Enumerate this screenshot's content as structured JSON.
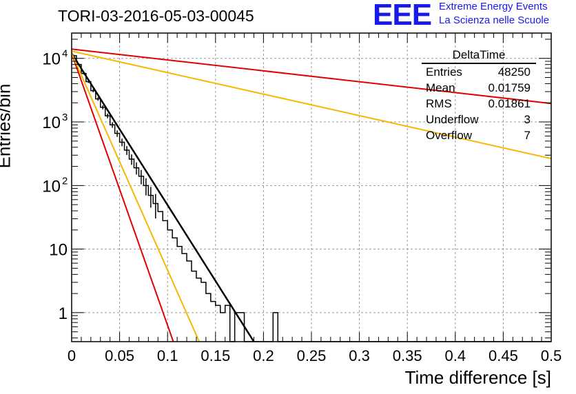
{
  "header": {
    "title": "TORI-03-2016-05-03-00045",
    "logo_text": "EEE",
    "logo_line1": "Extreme Energy Events",
    "logo_line2": "La Scienza nelle Scuole"
  },
  "stats_box": {
    "name": "DeltaTime",
    "rows": [
      {
        "label": "Entries",
        "value": "48250"
      },
      {
        "label": "Mean",
        "value": "0.01759"
      },
      {
        "label": "RMS",
        "value": "0.01861"
      },
      {
        "label": "Underflow",
        "value": "3"
      },
      {
        "label": "Overflow",
        "value": "7"
      }
    ]
  },
  "colors": {
    "histogram": "#000000",
    "fit_black": "#000000",
    "fit_red": "#e00000",
    "fit_orange": "#f5b800",
    "grid": "#999999"
  },
  "chart_data": {
    "type": "line",
    "xlabel": "Time difference [s]",
    "ylabel": "Entries/bin",
    "xlim": [
      0,
      0.5
    ],
    "ylim": [
      0.35,
      25000
    ],
    "yscale": "log",
    "grid": true,
    "x_ticks": [
      "0",
      "0.05",
      "0.1",
      "0.15",
      "0.2",
      "0.25",
      "0.3",
      "0.35",
      "0.4",
      "0.45",
      "0.5"
    ],
    "y_ticks": [
      {
        "value": 1,
        "label": "1"
      },
      {
        "value": 10,
        "label": "10"
      },
      {
        "value": 100,
        "label": "10",
        "sup": "2"
      },
      {
        "value": 1000,
        "label": "10",
        "sup": "3"
      },
      {
        "value": 10000,
        "label": "10",
        "sup": "4"
      }
    ],
    "histogram": {
      "bin_width": 0.005,
      "values": [
        11000,
        8000,
        5800,
        4300,
        3100,
        2300,
        1700,
        1250,
        900,
        660,
        480,
        360,
        260,
        190,
        140,
        100,
        70,
        52,
        39,
        28,
        20,
        15,
        11,
        8.5,
        6.5,
        4.5,
        3.5,
        3,
        2,
        1.5,
        1.3,
        1,
        1.3,
        0.3,
        1,
        1,
        0.3,
        0.3,
        0.3,
        0.3,
        0.3,
        0.3,
        1,
        0.3,
        0.3,
        0.3,
        0.3,
        0.3,
        0.3,
        0.3,
        0.3,
        0.3,
        0.3,
        0.3,
        0.3,
        0.3,
        0.3,
        0.3,
        0.3,
        0.3,
        0.3,
        0.3,
        0.3,
        0.3,
        0.3,
        0.3,
        0.3,
        0.3,
        0.3,
        0.3,
        0.3,
        0.3,
        0.3,
        0.3,
        0.3,
        0.3,
        0.3,
        0.3,
        0.3,
        0.3,
        0.3,
        0.3,
        0.3,
        0.3,
        0.3,
        0.3,
        0.3,
        0.3,
        0.3,
        0.3,
        0.3,
        0.3,
        0.3,
        0.3,
        0.3,
        0.3,
        0.3,
        0.3,
        0.3,
        0.3
      ]
    },
    "series": [
      {
        "color": "#000000",
        "x": [
          0,
          0.19
        ],
        "y": [
          12000,
          0.3
        ]
      },
      {
        "color": "#e00000",
        "x": [
          0,
          0.106
        ],
        "y": [
          12000,
          0.3
        ]
      },
      {
        "color": "#f5b800",
        "x": [
          0,
          0.133
        ],
        "y": [
          12000,
          0.3
        ]
      },
      {
        "color": "#e00000",
        "x": [
          0,
          0.5
        ],
        "y": [
          14000,
          1950
        ]
      },
      {
        "color": "#f5b800",
        "x": [
          0,
          0.5
        ],
        "y": [
          13000,
          265
        ]
      }
    ]
  }
}
